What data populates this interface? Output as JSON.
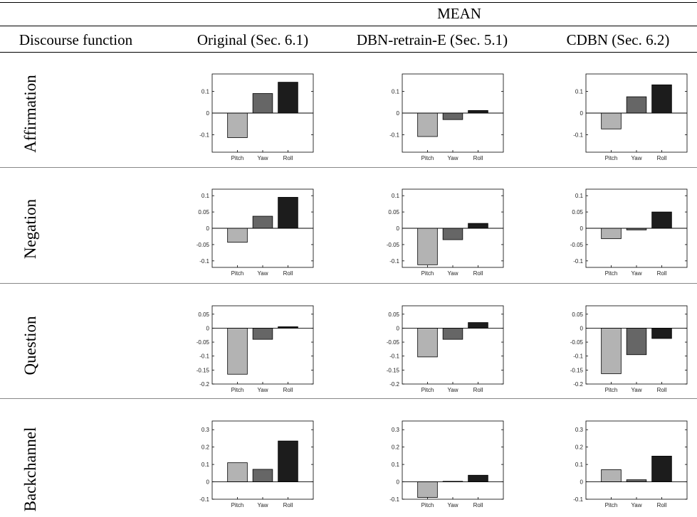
{
  "table": {
    "group_header": "MEAN",
    "row_header": "Discourse function",
    "columns": [
      "Original (Sec. 6.1)",
      "DBN-retrain-E (Sec. 5.1)",
      "CDBN (Sec. 6.2)"
    ],
    "rows": [
      "Affirmation",
      "Negation",
      "Question",
      "Backchannel"
    ]
  },
  "colors": {
    "pitch": "#b3b3b3",
    "yaw": "#666666",
    "roll": "#1c1c1c"
  },
  "chart_data": [
    {
      "type": "bar",
      "row": "Affirmation",
      "column": "Original (Sec. 6.1)",
      "categories": [
        "Pitch",
        "Yaw",
        "Roll"
      ],
      "values": [
        -0.113,
        0.09,
        0.142
      ],
      "ylim": [
        -0.18,
        0.18
      ],
      "yticks": [
        -0.1,
        0,
        0.1
      ],
      "ytick_labels": [
        "-0.1",
        "0",
        "0.1"
      ]
    },
    {
      "type": "bar",
      "row": "Affirmation",
      "column": "DBN-retrain-E (Sec. 5.1)",
      "categories": [
        "Pitch",
        "Yaw",
        "Roll"
      ],
      "values": [
        -0.108,
        -0.03,
        0.012
      ],
      "ylim": [
        -0.18,
        0.18
      ],
      "yticks": [
        -0.1,
        0,
        0.1
      ],
      "ytick_labels": [
        "-0.1",
        "0",
        "0.1"
      ]
    },
    {
      "type": "bar",
      "row": "Affirmation",
      "column": "CDBN (Sec. 6.2)",
      "categories": [
        "Pitch",
        "Yaw",
        "Roll"
      ],
      "values": [
        -0.073,
        0.075,
        0.13
      ],
      "ylim": [
        -0.18,
        0.18
      ],
      "yticks": [
        -0.1,
        0,
        0.1
      ],
      "ytick_labels": [
        "-0.1",
        "0",
        "0.1"
      ]
    },
    {
      "type": "bar",
      "row": "Negation",
      "column": "Original (Sec. 6.1)",
      "categories": [
        "Pitch",
        "Yaw",
        "Roll"
      ],
      "values": [
        -0.043,
        0.037,
        0.095
      ],
      "ylim": [
        -0.12,
        0.12
      ],
      "yticks": [
        -0.1,
        -0.05,
        0,
        0.05,
        0.1
      ],
      "ytick_labels": [
        "-0.1",
        "-0.05",
        "0",
        "0.05",
        "0.1"
      ]
    },
    {
      "type": "bar",
      "row": "Negation",
      "column": "DBN-retrain-E (Sec. 5.1)",
      "categories": [
        "Pitch",
        "Yaw",
        "Roll"
      ],
      "values": [
        -0.112,
        -0.035,
        0.015
      ],
      "ylim": [
        -0.12,
        0.12
      ],
      "yticks": [
        -0.1,
        -0.05,
        0,
        0.05,
        0.1
      ],
      "ytick_labels": [
        "-0.1",
        "-0.05",
        "0",
        "0.05",
        "0.1"
      ]
    },
    {
      "type": "bar",
      "row": "Negation",
      "column": "CDBN (Sec. 6.2)",
      "categories": [
        "Pitch",
        "Yaw",
        "Roll"
      ],
      "values": [
        -0.032,
        -0.005,
        0.05
      ],
      "ylim": [
        -0.12,
        0.12
      ],
      "yticks": [
        -0.1,
        -0.05,
        0,
        0.05,
        0.1
      ],
      "ytick_labels": [
        "-0.1",
        "-0.05",
        "0",
        "0.05",
        "0.1"
      ]
    },
    {
      "type": "bar",
      "row": "Question",
      "column": "Original (Sec. 6.1)",
      "categories": [
        "Pitch",
        "Yaw",
        "Roll"
      ],
      "values": [
        -0.165,
        -0.04,
        0.005
      ],
      "ylim": [
        -0.2,
        0.08
      ],
      "yticks": [
        -0.2,
        -0.15,
        -0.1,
        -0.05,
        0,
        0.05
      ],
      "ytick_labels": [
        "-0.2",
        "-0.15",
        "-0.1",
        "-0.05",
        "0",
        "0.05"
      ]
    },
    {
      "type": "bar",
      "row": "Question",
      "column": "DBN-retrain-E (Sec. 5.1)",
      "categories": [
        "Pitch",
        "Yaw",
        "Roll"
      ],
      "values": [
        -0.103,
        -0.04,
        0.02
      ],
      "ylim": [
        -0.2,
        0.08
      ],
      "yticks": [
        -0.2,
        -0.15,
        -0.1,
        -0.05,
        0,
        0.05
      ],
      "ytick_labels": [
        "-0.2",
        "-0.15",
        "-0.1",
        "-0.05",
        "0",
        "0.05"
      ]
    },
    {
      "type": "bar",
      "row": "Question",
      "column": "CDBN (Sec. 6.2)",
      "categories": [
        "Pitch",
        "Yaw",
        "Roll"
      ],
      "values": [
        -0.163,
        -0.095,
        -0.037
      ],
      "ylim": [
        -0.2,
        0.08
      ],
      "yticks": [
        -0.2,
        -0.15,
        -0.1,
        -0.05,
        0,
        0.05
      ],
      "ytick_labels": [
        "-0.2",
        "-0.15",
        "-0.1",
        "-0.05",
        "0",
        "0.05"
      ]
    },
    {
      "type": "bar",
      "row": "Backchannel",
      "column": "Original (Sec. 6.1)",
      "categories": [
        "Pitch",
        "Yaw",
        "Roll"
      ],
      "values": [
        0.11,
        0.072,
        0.235
      ],
      "ylim": [
        -0.1,
        0.35
      ],
      "yticks": [
        -0.1,
        0,
        0.1,
        0.2,
        0.3
      ],
      "ytick_labels": [
        "-0.1",
        "0",
        "0.1",
        "0.2",
        "0.3"
      ]
    },
    {
      "type": "bar",
      "row": "Backchannel",
      "column": "DBN-retrain-E (Sec. 5.1)",
      "categories": [
        "Pitch",
        "Yaw",
        "Roll"
      ],
      "values": [
        -0.09,
        0.003,
        0.038
      ],
      "ylim": [
        -0.1,
        0.35
      ],
      "yticks": [
        -0.1,
        0,
        0.1,
        0.2,
        0.3
      ],
      "ytick_labels": [
        "-0.1",
        "0",
        "0.1",
        "0.2",
        "0.3"
      ]
    },
    {
      "type": "bar",
      "row": "Backchannel",
      "column": "CDBN (Sec. 6.2)",
      "categories": [
        "Pitch",
        "Yaw",
        "Roll"
      ],
      "values": [
        0.07,
        0.012,
        0.148
      ],
      "ylim": [
        -0.1,
        0.35
      ],
      "yticks": [
        -0.1,
        0,
        0.1,
        0.2,
        0.3
      ],
      "ytick_labels": [
        "-0.1",
        "0",
        "0.1",
        "0.2",
        "0.3"
      ]
    }
  ]
}
